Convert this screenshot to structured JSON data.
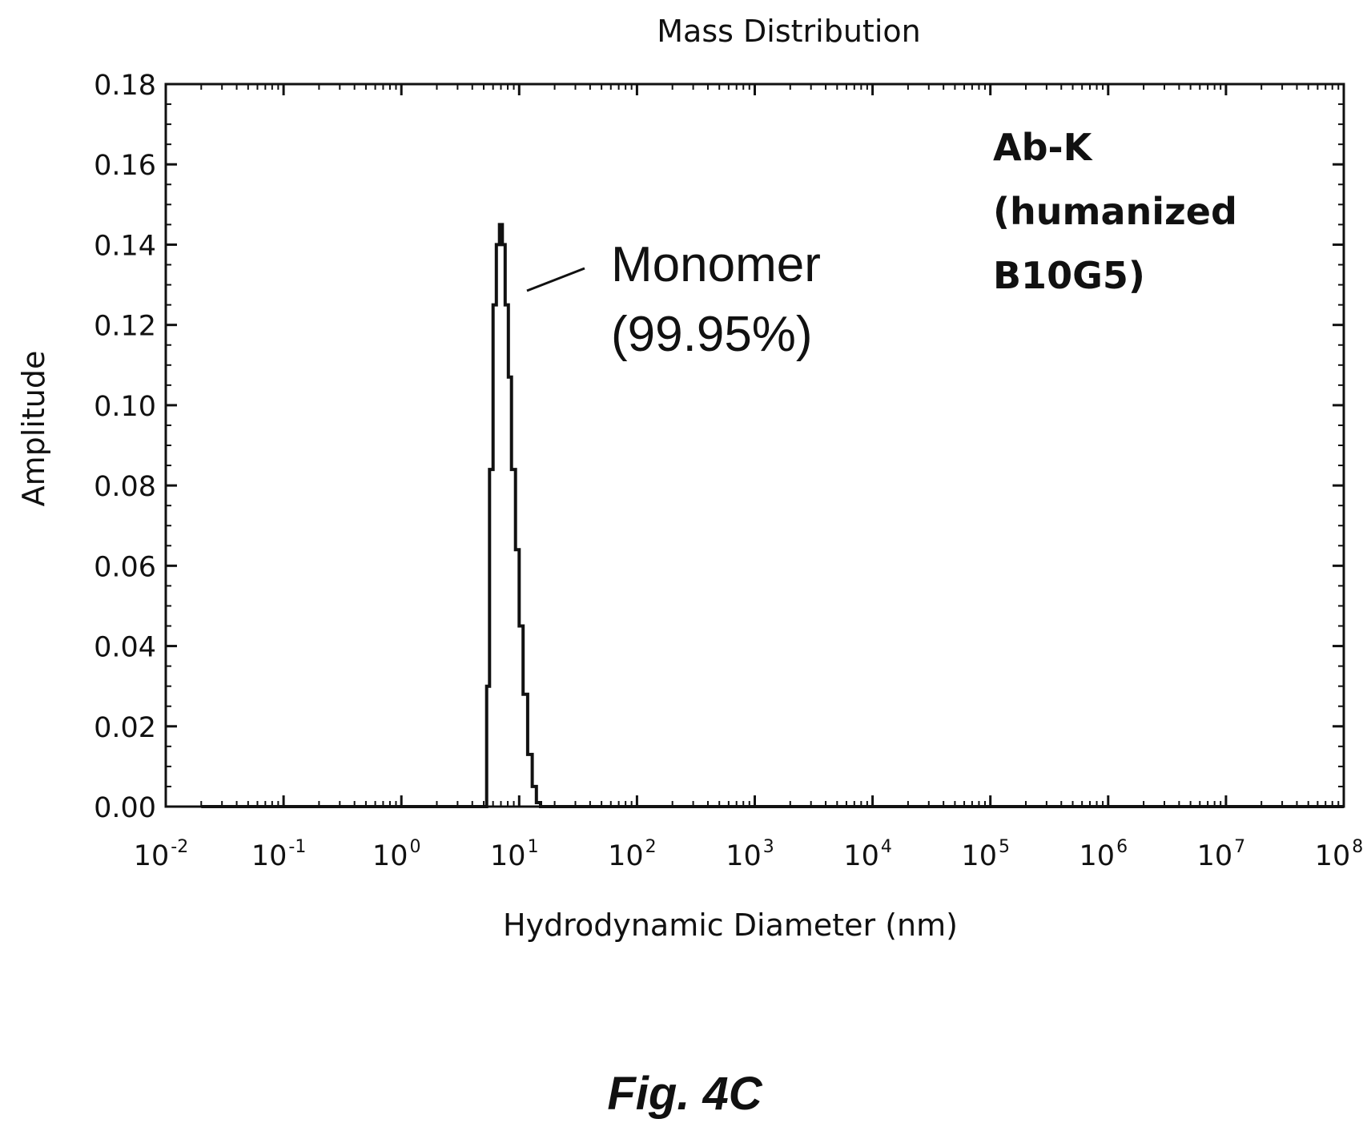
{
  "chart_data": {
    "type": "line",
    "title": "Mass Distribution",
    "xlabel": "Hydrodynamic Diameter (nm)",
    "ylabel": "Amplitude",
    "x_scale": "log",
    "xlim": [
      0.01,
      100000000
    ],
    "ylim": [
      0,
      0.18
    ],
    "x_ticks": [
      {
        "base": "10",
        "exp": "-2"
      },
      {
        "base": "10",
        "exp": "-1"
      },
      {
        "base": "10",
        "exp": "0"
      },
      {
        "base": "10",
        "exp": "1"
      },
      {
        "base": "10",
        "exp": "2"
      },
      {
        "base": "10",
        "exp": "3"
      },
      {
        "base": "10",
        "exp": "4"
      },
      {
        "base": "10",
        "exp": "5"
      },
      {
        "base": "10",
        "exp": "6"
      },
      {
        "base": "10",
        "exp": "7"
      },
      {
        "base": "10",
        "exp": "8"
      }
    ],
    "y_ticks": [
      "0.00",
      "0.02",
      "0.04",
      "0.06",
      "0.08",
      "0.10",
      "0.12",
      "0.14",
      "0.16",
      "0.18"
    ],
    "grid": false,
    "series": [
      {
        "x": [
          0.02,
          5.3,
          5.3,
          5.6,
          5.6,
          6.0,
          6.0,
          6.4,
          6.4,
          6.8,
          6.8,
          7.2,
          7.2,
          7.6,
          7.6,
          8.1,
          8.1,
          8.6,
          8.6,
          9.3,
          9.3,
          10.0,
          10.0,
          10.8,
          10.8,
          11.8,
          11.8,
          12.9,
          12.9,
          14.0,
          14.0,
          15.2,
          15.2,
          16.5,
          16.5,
          100000000
        ],
        "y": [
          0.0,
          0.0,
          0.03,
          0.03,
          0.084,
          0.084,
          0.125,
          0.125,
          0.14,
          0.14,
          0.145,
          0.145,
          0.14,
          0.14,
          0.125,
          0.125,
          0.107,
          0.107,
          0.084,
          0.084,
          0.064,
          0.064,
          0.045,
          0.045,
          0.028,
          0.028,
          0.013,
          0.013,
          0.005,
          0.005,
          0.001,
          0.001,
          0.0,
          0.0,
          0.0,
          0.0
        ]
      }
    ],
    "annotations": {
      "peak_label_1": "Monomer",
      "peak_label_2": "(99.95%)",
      "sample_line_1": "Ab-K",
      "sample_line_2": "(humanized",
      "sample_line_3": "B10G5)"
    }
  },
  "figure_caption": "Fig. 4C"
}
